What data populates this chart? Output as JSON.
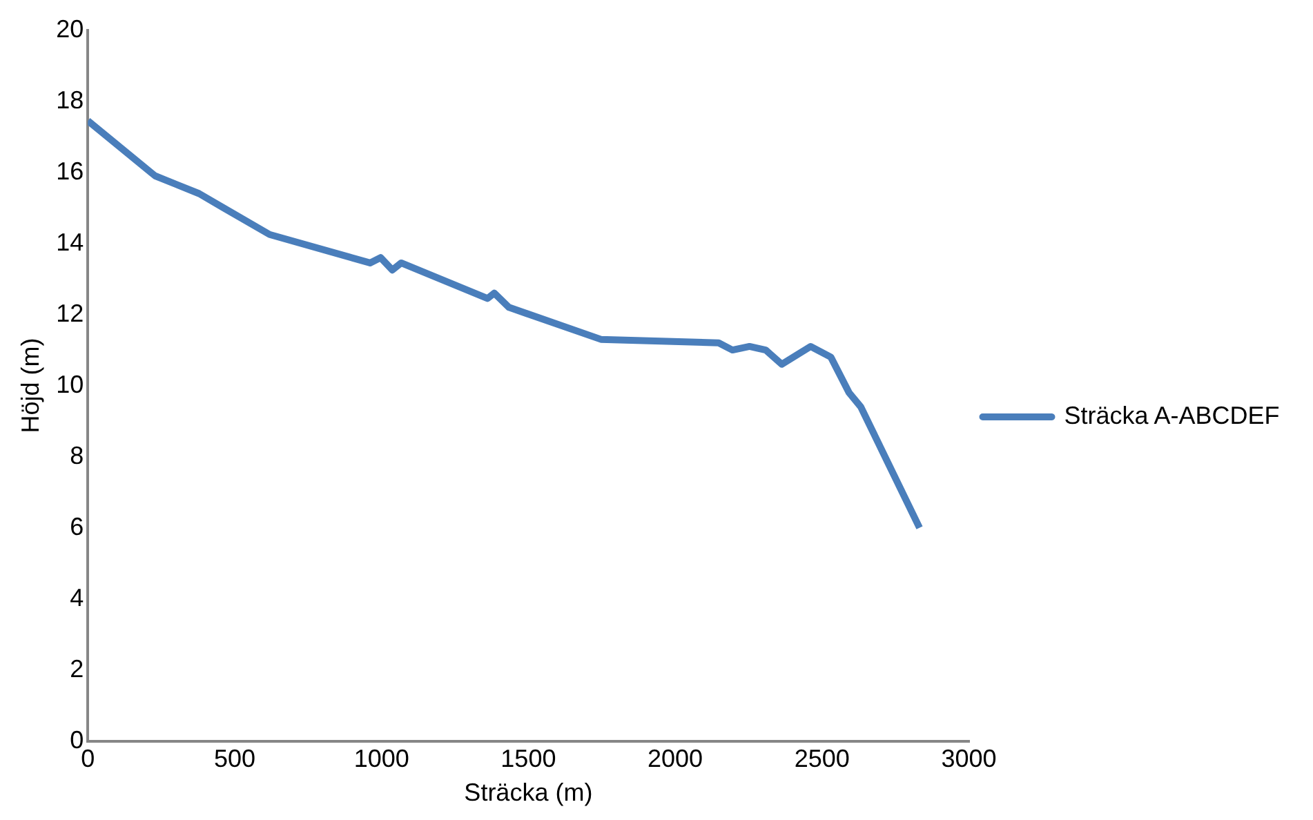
{
  "chart_data": {
    "type": "line",
    "xlabel": "Sträcka (m)",
    "ylabel": "Höjd (m)",
    "xlim": [
      0,
      3000
    ],
    "xticks": [
      0,
      500,
      1000,
      1500,
      2000,
      2500,
      3000
    ],
    "ylim": [
      0,
      20
    ],
    "yticks": [
      0,
      2,
      4,
      6,
      8,
      10,
      12,
      14,
      16,
      18,
      20
    ],
    "grid": false,
    "legend": "right",
    "marker": "none",
    "line_style": "solid",
    "series": [
      {
        "name": "Sträcka A-ABCDEF",
        "color": "#4a7ebb",
        "x": [
          0,
          229,
          379,
          462,
          619,
          961,
          997,
          1037,
          1067,
          1361,
          1384,
          1434,
          1747,
          2148,
          2195,
          2253,
          2308,
          2363,
          2461,
          2530,
          2592,
          2632,
          2832
        ],
        "values": [
          17.45,
          15.9,
          15.4,
          15.0,
          14.25,
          13.45,
          13.6,
          13.25,
          13.45,
          12.45,
          12.6,
          12.2,
          11.3,
          11.2,
          11.0,
          11.1,
          11.0,
          10.6,
          11.1,
          10.8,
          9.8,
          9.4,
          6.0
        ]
      }
    ]
  }
}
